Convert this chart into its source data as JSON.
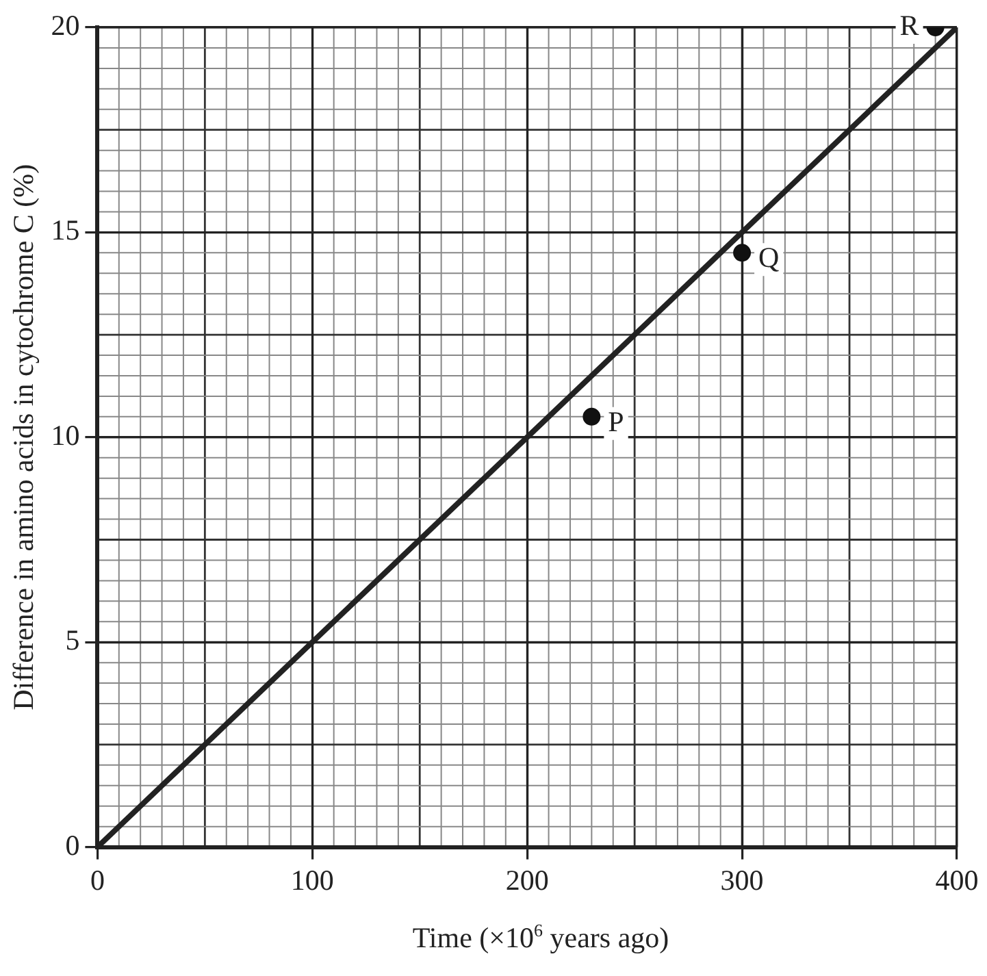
{
  "chart_data": {
    "type": "scatter",
    "xlabel": "Time (×10$^{6}$ years ago)",
    "ylabel": "Difference in amino acids in cytochrome C (%)",
    "xlim": [
      0,
      400
    ],
    "xticks": [
      0,
      100,
      200,
      300,
      400
    ],
    "ylim": [
      0,
      20
    ],
    "yticks": [
      0,
      5,
      10,
      15,
      20
    ],
    "grid": true,
    "legend": false,
    "series": [
      {
        "type": "line",
        "color": "#222222",
        "x": [
          0,
          400
        ],
        "values": [
          0,
          20
        ],
        "marker": "none",
        "line_style": "solid"
      },
      {
        "color": "#111111",
        "x": [
          230,
          300,
          390
        ],
        "values": [
          10.5,
          14.5,
          20
        ],
        "marker": "circle"
      }
    ],
    "annotations": [
      {
        "text": "P",
        "x": 230,
        "y": 10.5
      },
      {
        "text": "Q",
        "x": 300,
        "y": 14.5
      },
      {
        "text": "R",
        "x": 390,
        "y": 20
      }
    ]
  }
}
